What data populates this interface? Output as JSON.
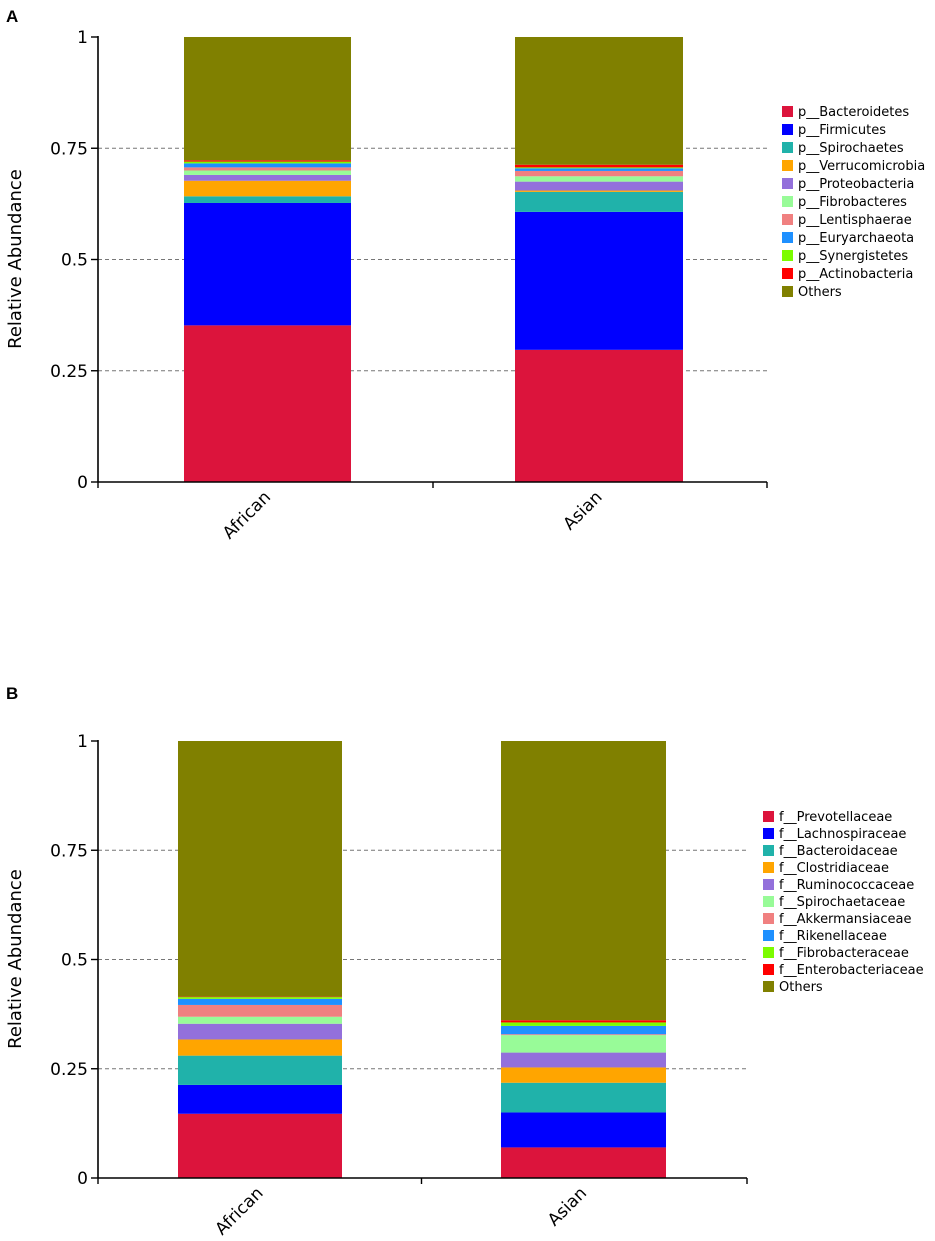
{
  "chart_data": [
    {
      "type": "bar",
      "stacked": true,
      "panel_label": "A",
      "title": "",
      "xlabel": "",
      "ylabel": "Relative Abundance",
      "ylim": [
        0,
        1
      ],
      "yticks": [
        0,
        0.25,
        0.5,
        0.75,
        1
      ],
      "ytick_labels": [
        "0",
        "0.25",
        "0.5",
        "0.75",
        "1"
      ],
      "grid": "dashed horizontal at 0.25, 0.5, 0.75",
      "legend_position": "right",
      "categories": [
        "African",
        "Asian"
      ],
      "series": [
        {
          "name": "p__Bacteroidetes",
          "color": "#dc143c",
          "values": [
            0.352,
            0.297
          ]
        },
        {
          "name": "p__Firmicutes",
          "color": "#0000ff",
          "values": [
            0.275,
            0.31
          ]
        },
        {
          "name": "p__Spirochaetes",
          "color": "#20b2aa",
          "values": [
            0.015,
            0.045
          ]
        },
        {
          "name": "p__Verrucomicrobia",
          "color": "#ffa500",
          "values": [
            0.035,
            0.003
          ]
        },
        {
          "name": "p__Proteobacteria",
          "color": "#9370db",
          "values": [
            0.013,
            0.02
          ]
        },
        {
          "name": "p__Fibrobacteres",
          "color": "#98fb98",
          "values": [
            0.01,
            0.012
          ]
        },
        {
          "name": "p__Lentisphaerae",
          "color": "#f08080",
          "values": [
            0.007,
            0.012
          ]
        },
        {
          "name": "p__Euryarchaeota",
          "color": "#1e90ff",
          "values": [
            0.009,
            0.006
          ]
        },
        {
          "name": "p__Synergistetes",
          "color": "#7cfc00",
          "values": [
            0.004,
            0.002
          ]
        },
        {
          "name": "p__Actinobacteria",
          "color": "#ff0000",
          "values": [
            0.003,
            0.006
          ]
        },
        {
          "name": "Others",
          "color": "#808000",
          "values": [
            0.277,
            0.287
          ]
        }
      ]
    },
    {
      "type": "bar",
      "stacked": true,
      "panel_label": "B",
      "title": "",
      "xlabel": "",
      "ylabel": "Relative Abundance",
      "ylim": [
        0,
        1
      ],
      "yticks": [
        0,
        0.25,
        0.5,
        0.75,
        1
      ],
      "ytick_labels": [
        "0",
        "0.25",
        "0.5",
        "0.75",
        "1"
      ],
      "grid": "dashed horizontal at 0.25, 0.5, 0.75",
      "legend_position": "right",
      "categories": [
        "African",
        "Asian"
      ],
      "series": [
        {
          "name": "f__Prevotellaceae",
          "color": "#dc143c",
          "values": [
            0.147,
            0.07
          ]
        },
        {
          "name": "f__Lachnospiraceae",
          "color": "#0000ff",
          "values": [
            0.066,
            0.08
          ]
        },
        {
          "name": "f__Bacteroidaceae",
          "color": "#20b2aa",
          "values": [
            0.067,
            0.068
          ]
        },
        {
          "name": "f__Clostridiaceae",
          "color": "#ffa500",
          "values": [
            0.037,
            0.035
          ]
        },
        {
          "name": "f__Ruminococcaceae",
          "color": "#9370db",
          "values": [
            0.036,
            0.034
          ]
        },
        {
          "name": "f__Spirochaetaceae",
          "color": "#98fb98",
          "values": [
            0.016,
            0.04
          ]
        },
        {
          "name": "f__Akkermansiaceae",
          "color": "#f08080",
          "values": [
            0.027,
            0.002
          ]
        },
        {
          "name": "f__Rikenellaceae",
          "color": "#1e90ff",
          "values": [
            0.014,
            0.019
          ]
        },
        {
          "name": "f__Fibrobacteraceae",
          "color": "#7cfc00",
          "values": [
            0.004,
            0.008
          ]
        },
        {
          "name": "f__Enterobacteriaceae",
          "color": "#ff0000",
          "values": [
            0.001,
            0.005
          ]
        },
        {
          "name": "Others",
          "color": "#808000",
          "values": [
            0.585,
            0.639
          ]
        }
      ]
    }
  ]
}
